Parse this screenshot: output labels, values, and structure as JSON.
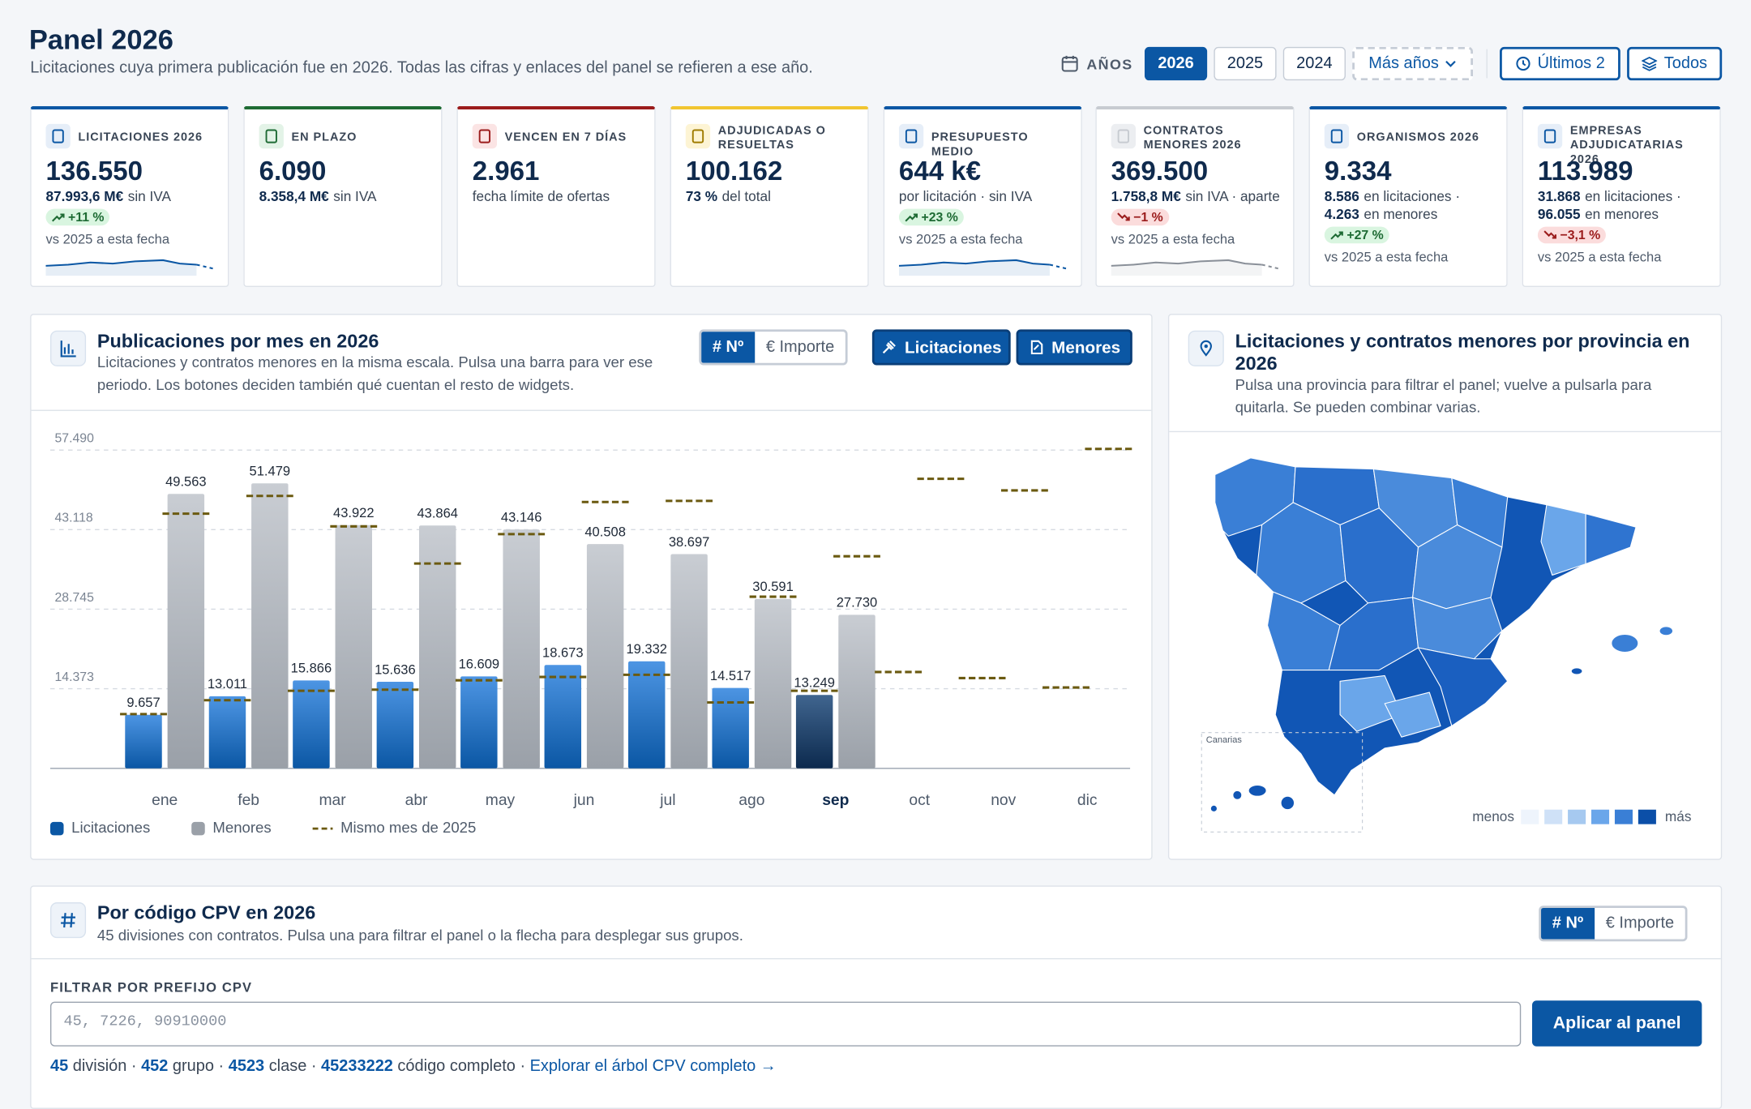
{
  "header": {
    "title": "Panel 2026",
    "subtitle": "Licitaciones cuya primera publicación fue en 2026. Todas las cifras y enlaces del panel se refieren a ese año.",
    "years_label": "AÑOS",
    "years": [
      "2026",
      "2025",
      "2024"
    ],
    "more_years": "Más años",
    "range_buttons": [
      "Últimos 2",
      "Todos"
    ]
  },
  "kpis": [
    {
      "label": "LICITACIONES 2026",
      "value": "136.550",
      "accent": "#0b57a4",
      "icon_bg": "#e6eef8",
      "lines": [
        [
          {
            "strong": "87.993,6 M€",
            "text": "sin IVA"
          }
        ]
      ],
      "badge": "+11 %",
      "trend": "up",
      "note": "vs 2025 a esta fecha",
      "sparkline": "#0b57a4"
    },
    {
      "label": "EN PLAZO",
      "value": "6.090",
      "accent": "#1e6b34",
      "icon_bg": "#e3f3e7",
      "lines": [
        [
          {
            "strong": "8.358,4 M€",
            "text": "sin IVA"
          }
        ]
      ]
    },
    {
      "label": "VENCEN EN 7 DÍAS",
      "value": "2.961",
      "accent": "#9b1c1c",
      "icon_bg": "#fbe4e4",
      "lines": [
        [
          {
            "text": "fecha límite de ofertas"
          }
        ]
      ]
    },
    {
      "label": "ADJUDICADAS O RESUELTAS",
      "value": "100.162",
      "accent": "#f1c531",
      "icon_bg": "#fdf4d4",
      "lines": [
        [
          {
            "strong": "73 %",
            "text": "del total"
          }
        ]
      ]
    },
    {
      "label": "PRESUPUESTO MEDIO",
      "value": "644 k€",
      "accent": "#0b57a4",
      "icon_bg": "#e6eef8",
      "lines": [
        [
          {
            "text": "por licitación · sin IVA"
          }
        ]
      ],
      "badge": "+23 %",
      "trend": "up",
      "note": "vs 2025 a esta fecha",
      "sparkline": "#0b57a4"
    },
    {
      "label": "CONTRATOS MENORES 2026",
      "value": "369.500",
      "accent": "#c7cbd1",
      "icon_bg": "#eceef1",
      "lines": [
        [
          {
            "strong": "1.758,8 M€",
            "text": "sin IVA · aparte"
          }
        ]
      ],
      "badge": "−1 %",
      "trend": "down",
      "note": "vs 2025 a esta fecha",
      "sparkline": "#8a9099"
    },
    {
      "label": "ORGANISMOS 2026",
      "value": "9.334",
      "accent": "#0b57a4",
      "icon_bg": "#e6eef8",
      "lines": [
        [
          {
            "strong": "8.586",
            "text": "en licitaciones ·"
          }
        ],
        [
          {
            "strong": "4.263",
            "text": "en menores"
          }
        ]
      ],
      "badge": "+27 %",
      "trend": "up",
      "note": "vs 2025 a esta fecha"
    },
    {
      "label": "EMPRESAS ADJUDICATARIAS 2026",
      "value": "113.989",
      "accent": "#0b57a4",
      "icon_bg": "#e6eef8",
      "lines": [
        [
          {
            "strong": "31.868",
            "text": "en licitaciones ·"
          }
        ],
        [
          {
            "strong": "96.055",
            "text": "en menores"
          }
        ]
      ],
      "badge": "−3,1 %",
      "trend": "down",
      "note": "vs 2025 a esta fecha"
    }
  ],
  "monthly_panel": {
    "title": "Publicaciones por mes en 2026",
    "description": "Licitaciones y contratos menores en la misma escala. Pulsa una barra para ver ese periodo. Los botones deciden también qué cuentan el resto de widgets.",
    "toggles": [
      "# Nº",
      "€ Importe"
    ],
    "filters": [
      "Licitaciones",
      "Menores"
    ]
  },
  "chart_data": {
    "type": "bar",
    "categories": [
      "ene",
      "feb",
      "mar",
      "abr",
      "may",
      "jun",
      "jul",
      "ago",
      "sep",
      "oct",
      "nov",
      "dic"
    ],
    "selected_index": 8,
    "ylim": [
      0,
      57490
    ],
    "yticks": [
      {
        "value": 14373,
        "label": "14.373"
      },
      {
        "value": 28745,
        "label": "28.745"
      },
      {
        "value": 43118,
        "label": "43.118"
      },
      {
        "value": 57490,
        "label": "57.490"
      }
    ],
    "grid": true,
    "series": [
      {
        "name": "Licitaciones",
        "color": "#0b57a4",
        "values": [
          9657,
          13011,
          15866,
          15636,
          16609,
          18673,
          19332,
          14517,
          13249,
          null,
          null,
          null
        ],
        "value_labels": [
          "9.657",
          "13.011",
          "15.866",
          "15.636",
          "16.609",
          "18.673",
          "19.332",
          "14.517",
          "13.249",
          null,
          null,
          null
        ]
      },
      {
        "name": "Menores",
        "color": "#9aa0a8",
        "values": [
          49563,
          51479,
          43922,
          43864,
          43146,
          40508,
          38697,
          30591,
          27730,
          null,
          null,
          null
        ],
        "value_labels": [
          "49.563",
          "51.479",
          "43.922",
          "43.864",
          "43.146",
          "40.508",
          "38.697",
          "30.591",
          "27.730",
          null,
          null,
          null
        ]
      }
    ],
    "reference": {
      "name": "Mismo mes de 2025",
      "color": "#6b5a10",
      "licitaciones": [
        9800,
        12300,
        14000,
        14200,
        15900,
        16500,
        16900,
        11900,
        14000,
        17400,
        16300,
        14600
      ],
      "menores": [
        46000,
        49200,
        43700,
        37000,
        42300,
        48100,
        48300,
        31000,
        38300,
        52300,
        50200,
        57700
      ]
    }
  },
  "map_panel": {
    "title": "Licitaciones y contratos menores por provincia en 2026",
    "description": "Pulsa una provincia para filtrar el panel; vuelve a pulsarla para quitarla. Se pueden combinar varias.",
    "inset_label": "Canarias",
    "legend_low": "menos",
    "legend_high": "más"
  },
  "cpv_panel": {
    "title": "Por código CPV en 2026",
    "description": "45 divisiones con contratos. Pulsa una para filtrar el panel o la flecha para desplegar sus grupos.",
    "toggles": [
      "# Nº",
      "€ Importe"
    ],
    "filter_label": "FILTRAR POR PREFIJO CPV",
    "placeholder": "45, 7226, 90910000",
    "apply": "Aplicar al panel",
    "counts": [
      {
        "number": "45",
        "text": "división ·"
      },
      {
        "number": "452",
        "text": "grupo ·"
      },
      {
        "number": "4523",
        "text": "clase ·"
      },
      {
        "number": "45233222",
        "text": "código completo ·"
      }
    ],
    "link": "Explorar el árbol CPV completo →"
  }
}
